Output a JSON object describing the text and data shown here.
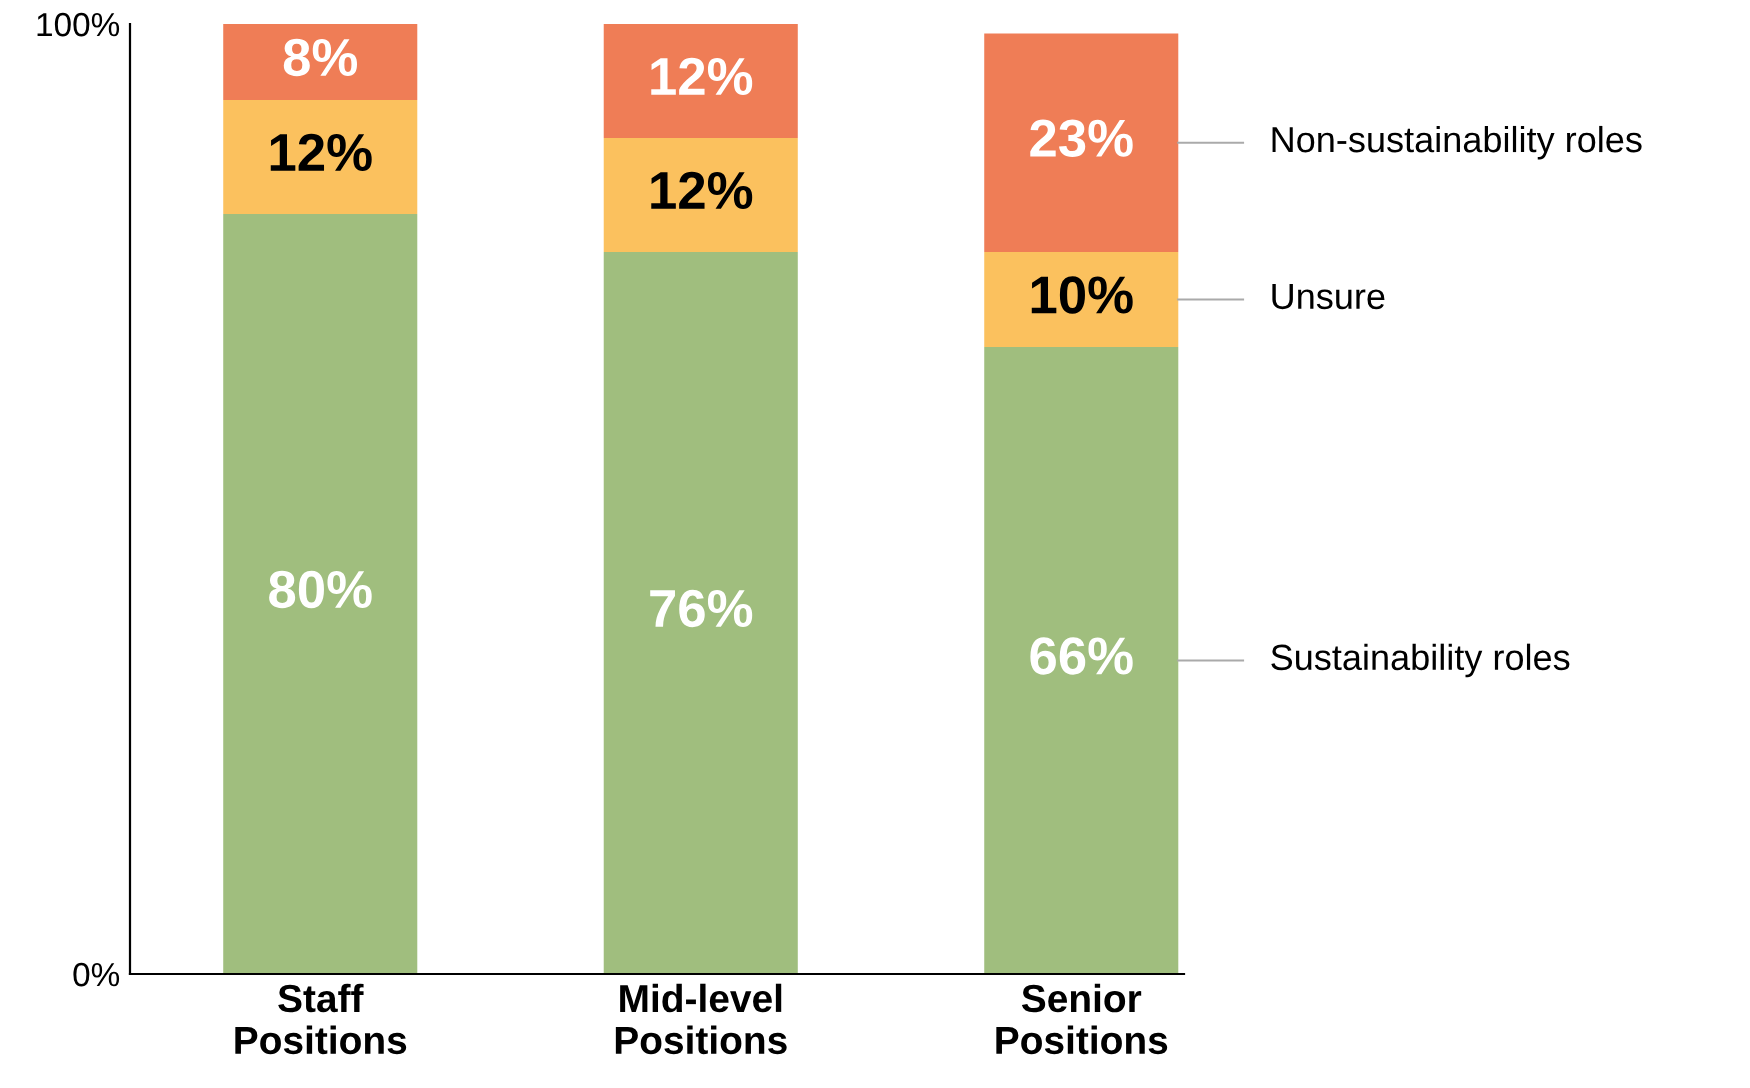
{
  "chart_data": {
    "type": "bar",
    "stacked": true,
    "categories": [
      "Staff\nPositions",
      "Mid-level\nPositions",
      "Senior\nPositions"
    ],
    "series": [
      {
        "name": "Sustainability roles",
        "color": "#a0be7e",
        "values": [
          80,
          76,
          66
        ],
        "value_labels": [
          "80%",
          "76%",
          "66%"
        ]
      },
      {
        "name": "Unsure",
        "color": "#fbc15e",
        "values": [
          12,
          12,
          10
        ],
        "value_labels": [
          "12%",
          "12%",
          "10%"
        ]
      },
      {
        "name": "Non-sustainability roles",
        "color": "#ef7d56",
        "values": [
          8,
          12,
          23
        ],
        "value_labels": [
          "8%",
          "12%",
          "23%"
        ]
      }
    ],
    "ylim": [
      0,
      100
    ],
    "yticks": [
      {
        "value": 0,
        "label": "0%"
      },
      {
        "value": 100,
        "label": "100%"
      }
    ],
    "grid": false,
    "legend": false
  }
}
